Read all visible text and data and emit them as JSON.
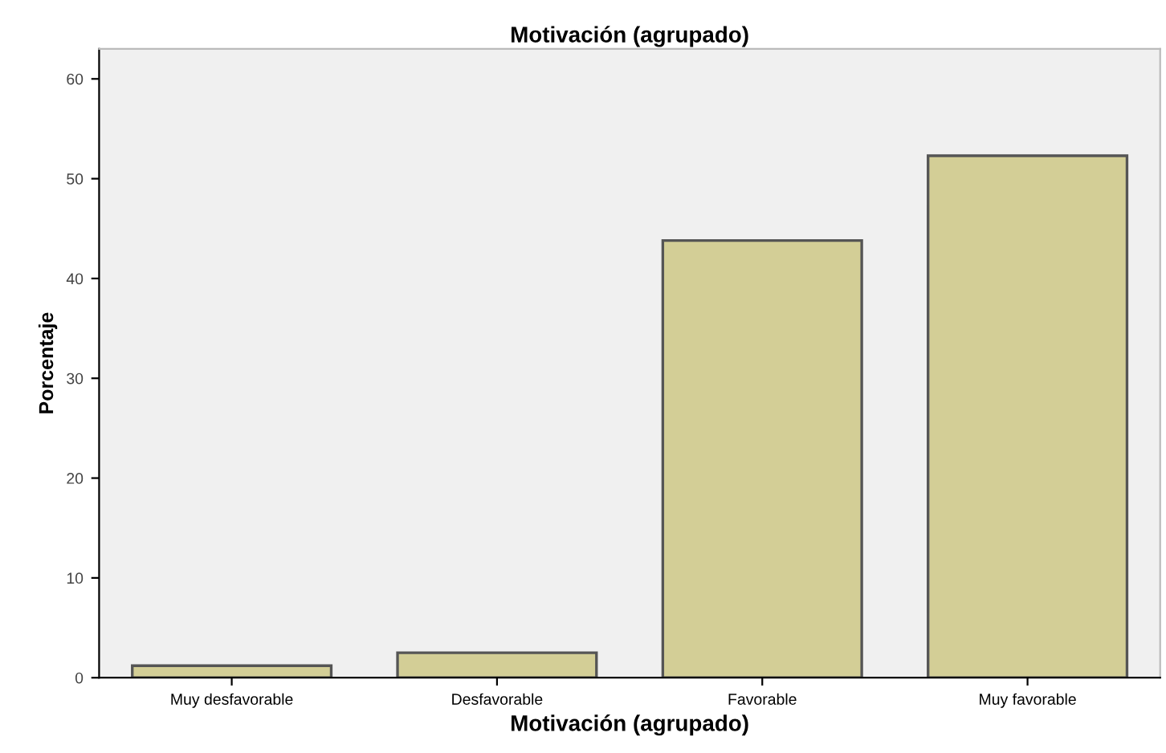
{
  "chart_data": {
    "type": "bar",
    "title": "Motivación (agrupado)",
    "xlabel": "Motivación (agrupado)",
    "ylabel": "Porcentaje",
    "categories": [
      "Muy desfavorable",
      "Desfavorable",
      "Favorable",
      "Muy favorable"
    ],
    "values": [
      1.2,
      2.5,
      43.8,
      52.3
    ],
    "color": "#d3ce96",
    "ylim": [
      0,
      63
    ],
    "yticks": [
      0,
      10,
      20,
      30,
      40,
      50,
      60
    ],
    "grid": false
  }
}
